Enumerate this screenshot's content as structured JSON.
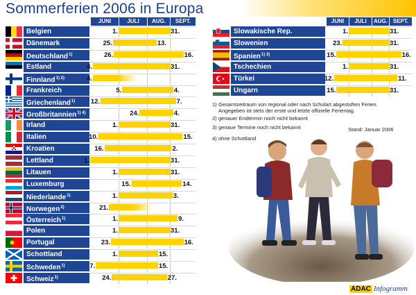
{
  "title": "Sommerferien 2006 in Europa",
  "months": [
    "JUNI",
    "JULI",
    "AUG.",
    "SEPT."
  ],
  "notes": [
    {
      "num": "1)",
      "text": "Gesamtzeitraum von regional oder nach Schulart abgestuften Ferien.\nAngegeben ist stets der erste und letzte offizielle Ferientag."
    },
    {
      "num": "2)",
      "text": "genauer Endtermin noch nicht bekannt"
    },
    {
      "num": "3)",
      "text": "genaue Termine noch nicht bekannt"
    },
    {
      "num": "4)",
      "text": "ohne Schottland"
    }
  ],
  "stand": "Stand: Januar 2006",
  "logo": {
    "adac": "ADAC",
    "info": "Infogramm"
  },
  "colors": {
    "header_blue": "#1e4694",
    "bar_yellow": "#ffd200",
    "title_blue": "#1b3f8f"
  },
  "chart_data": {
    "type": "gantt",
    "title": "Sommerferien 2006 in Europa",
    "x_axis": {
      "categories": [
        "JUNI",
        "JULI",
        "AUG.",
        "SEPT."
      ]
    },
    "left_column": [
      {
        "country": "Belgien",
        "flag": "be",
        "start_label": "1.",
        "end_label": "31.",
        "start_date": "2006-07-01",
        "end_date": "2006-08-31"
      },
      {
        "country": "Dänemark",
        "flag": "dk",
        "start_label": "25.",
        "end_label": "13.",
        "start_date": "2006-06-25",
        "end_date": "2006-08-13"
      },
      {
        "country": "Deutschland",
        "note": "1)",
        "flag": "de",
        "start_label": "26.",
        "end_label": "16.",
        "start_date": "2006-06-26",
        "end_date": "2006-09-16"
      },
      {
        "country": "Estland",
        "flag": "ee",
        "start_label": "4.",
        "end_label": "31.",
        "start_date": "2006-06-04",
        "end_date": "2006-08-31"
      },
      {
        "country": "Finnland",
        "note": "1) 2)",
        "flag": "fi",
        "start_label": "4.",
        "end_label": "",
        "start_date": "2006-06-04",
        "end_date": "",
        "open_end": true
      },
      {
        "country": "Frankreich",
        "flag": "fr",
        "start_label": "5.",
        "end_label": "4.",
        "start_date": "2006-07-05",
        "end_date": "2006-09-04"
      },
      {
        "country": "Griechenland",
        "note": "1)",
        "flag": "gr",
        "start_label": "12.",
        "end_label": "7.",
        "start_date": "2006-06-12",
        "end_date": "2006-09-07"
      },
      {
        "country": "Großbritannien",
        "note": "1) 4)",
        "flag": "gb",
        "start_label": "24.",
        "end_label": "4.",
        "start_date": "2006-07-24",
        "end_date": "2006-09-04"
      },
      {
        "country": "Irland",
        "flag": "ie",
        "start_label": "1.",
        "end_label": "31.",
        "start_date": "2006-07-01",
        "end_date": "2006-08-31"
      },
      {
        "country": "Italien",
        "flag": "it",
        "start_label": "10.",
        "end_label": "15.",
        "start_date": "2006-06-10",
        "end_date": "2006-09-15"
      },
      {
        "country": "Kroatien",
        "flag": "hr",
        "start_label": "16.",
        "end_label": "2.",
        "start_date": "2006-06-16",
        "end_date": "2006-09-02"
      },
      {
        "country": "Lettland",
        "flag": "lv",
        "start_label": "1.",
        "end_label": "31.",
        "start_date": "2006-06-01",
        "end_date": "2006-08-31"
      },
      {
        "country": "Litauen",
        "flag": "lt",
        "start_label": "1.",
        "end_label": "31.",
        "start_date": "2006-07-01",
        "end_date": "2006-08-31"
      },
      {
        "country": "Luxemburg",
        "flag": "lu",
        "start_label": "15.",
        "end_label": "14.",
        "start_date": "2006-07-15",
        "end_date": "2006-09-14"
      },
      {
        "country": "Niederlande",
        "note": "1)",
        "flag": "nl",
        "start_label": "1.",
        "end_label": "3.",
        "start_date": "2006-07-01",
        "end_date": "2006-09-03"
      },
      {
        "country": "Norwegen",
        "note": "2)",
        "flag": "no",
        "start_label": "21.",
        "end_label": "",
        "start_date": "2006-06-21",
        "end_date": "",
        "open_end": true
      },
      {
        "country": "Österreich",
        "note": "1)",
        "flag": "at",
        "start_label": "1.",
        "end_label": "9.",
        "start_date": "2006-07-01",
        "end_date": "2006-09-09"
      },
      {
        "country": "Polen",
        "flag": "pl",
        "start_label": "1.",
        "end_label": "31.",
        "start_date": "2006-07-01",
        "end_date": "2006-08-31"
      },
      {
        "country": "Portugal",
        "flag": "pt",
        "start_label": "23.",
        "end_label": "16.",
        "start_date": "2006-06-23",
        "end_date": "2006-09-16"
      },
      {
        "country": "Schottland",
        "flag": "sc",
        "start_label": "1.",
        "end_label": "15.",
        "start_date": "2006-07-01",
        "end_date": "2006-08-15"
      },
      {
        "country": "Schweden",
        "note": "1)",
        "flag": "se",
        "start_label": "7.",
        "end_label": "15.",
        "start_date": "2006-06-07",
        "end_date": "2006-08-15"
      },
      {
        "country": "Schweiz",
        "note": "1)",
        "flag": "ch",
        "start_label": "24.",
        "end_label": "27.",
        "start_date": "2006-06-24",
        "end_date": "2006-08-27"
      }
    ],
    "right_column": [
      {
        "country": "Slowakische Rep.",
        "flag": "sk",
        "start_label": "1.",
        "end_label": "31.",
        "start_date": "2006-07-01",
        "end_date": "2006-08-31"
      },
      {
        "country": "Slowenien",
        "flag": "si",
        "start_label": "23.",
        "end_label": "31.",
        "start_date": "2006-06-23",
        "end_date": "2006-08-31"
      },
      {
        "country": "Spanien",
        "note": "1) 3)",
        "flag": "es",
        "start_label": "15.",
        "end_label": "16.",
        "start_date": "2006-06-15",
        "end_date": "2006-09-16"
      },
      {
        "country": "Tschechien",
        "flag": "cz",
        "start_label": "1.",
        "end_label": "31.",
        "start_date": "2006-07-01",
        "end_date": "2006-08-31"
      },
      {
        "country": "Türkei",
        "flag": "tr",
        "start_label": "12.",
        "end_label": "11.",
        "start_date": "2006-06-12",
        "end_date": "2006-09-11"
      },
      {
        "country": "Ungarn",
        "flag": "hu",
        "start_label": "15.",
        "end_label": "31.",
        "start_date": "2006-06-15",
        "end_date": "2006-08-31"
      }
    ]
  }
}
